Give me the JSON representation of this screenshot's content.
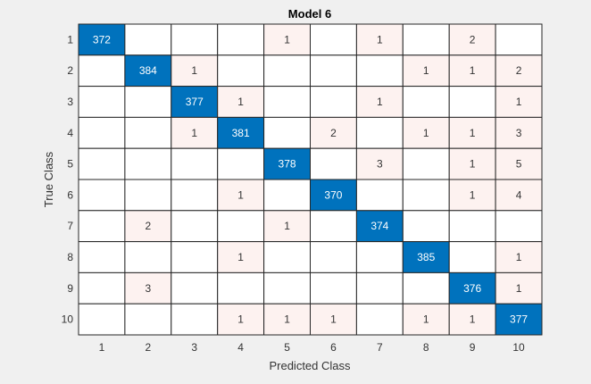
{
  "chart_data": {
    "type": "heatmap",
    "title": "Model 6",
    "xlabel": "Predicted Class",
    "ylabel": "True Class",
    "row_labels": [
      "1",
      "2",
      "3",
      "4",
      "5",
      "6",
      "7",
      "8",
      "9",
      "10"
    ],
    "col_labels": [
      "1",
      "2",
      "3",
      "4",
      "5",
      "6",
      "7",
      "8",
      "9",
      "10"
    ],
    "matrix": [
      [
        372,
        0,
        0,
        0,
        1,
        0,
        1,
        0,
        2,
        0
      ],
      [
        0,
        384,
        1,
        0,
        0,
        0,
        0,
        1,
        1,
        2
      ],
      [
        0,
        0,
        377,
        1,
        0,
        0,
        1,
        0,
        0,
        1
      ],
      [
        0,
        0,
        1,
        381,
        0,
        2,
        0,
        1,
        1,
        3
      ],
      [
        0,
        0,
        0,
        0,
        378,
        0,
        3,
        0,
        1,
        5
      ],
      [
        0,
        0,
        0,
        1,
        0,
        370,
        0,
        0,
        1,
        4
      ],
      [
        0,
        2,
        0,
        0,
        1,
        0,
        374,
        0,
        0,
        0
      ],
      [
        0,
        0,
        0,
        1,
        0,
        0,
        0,
        385,
        0,
        1
      ],
      [
        0,
        3,
        0,
        0,
        0,
        0,
        0,
        0,
        376,
        1
      ],
      [
        0,
        0,
        0,
        1,
        1,
        1,
        0,
        1,
        1,
        377
      ]
    ],
    "colors": {
      "diagonal": "#0072bd",
      "off_diagonal": "#fdf2f0",
      "empty": "#ffffff",
      "grid": "#262626",
      "diagonal_text": "#ffffff",
      "off_diagonal_text": "#333333"
    }
  }
}
